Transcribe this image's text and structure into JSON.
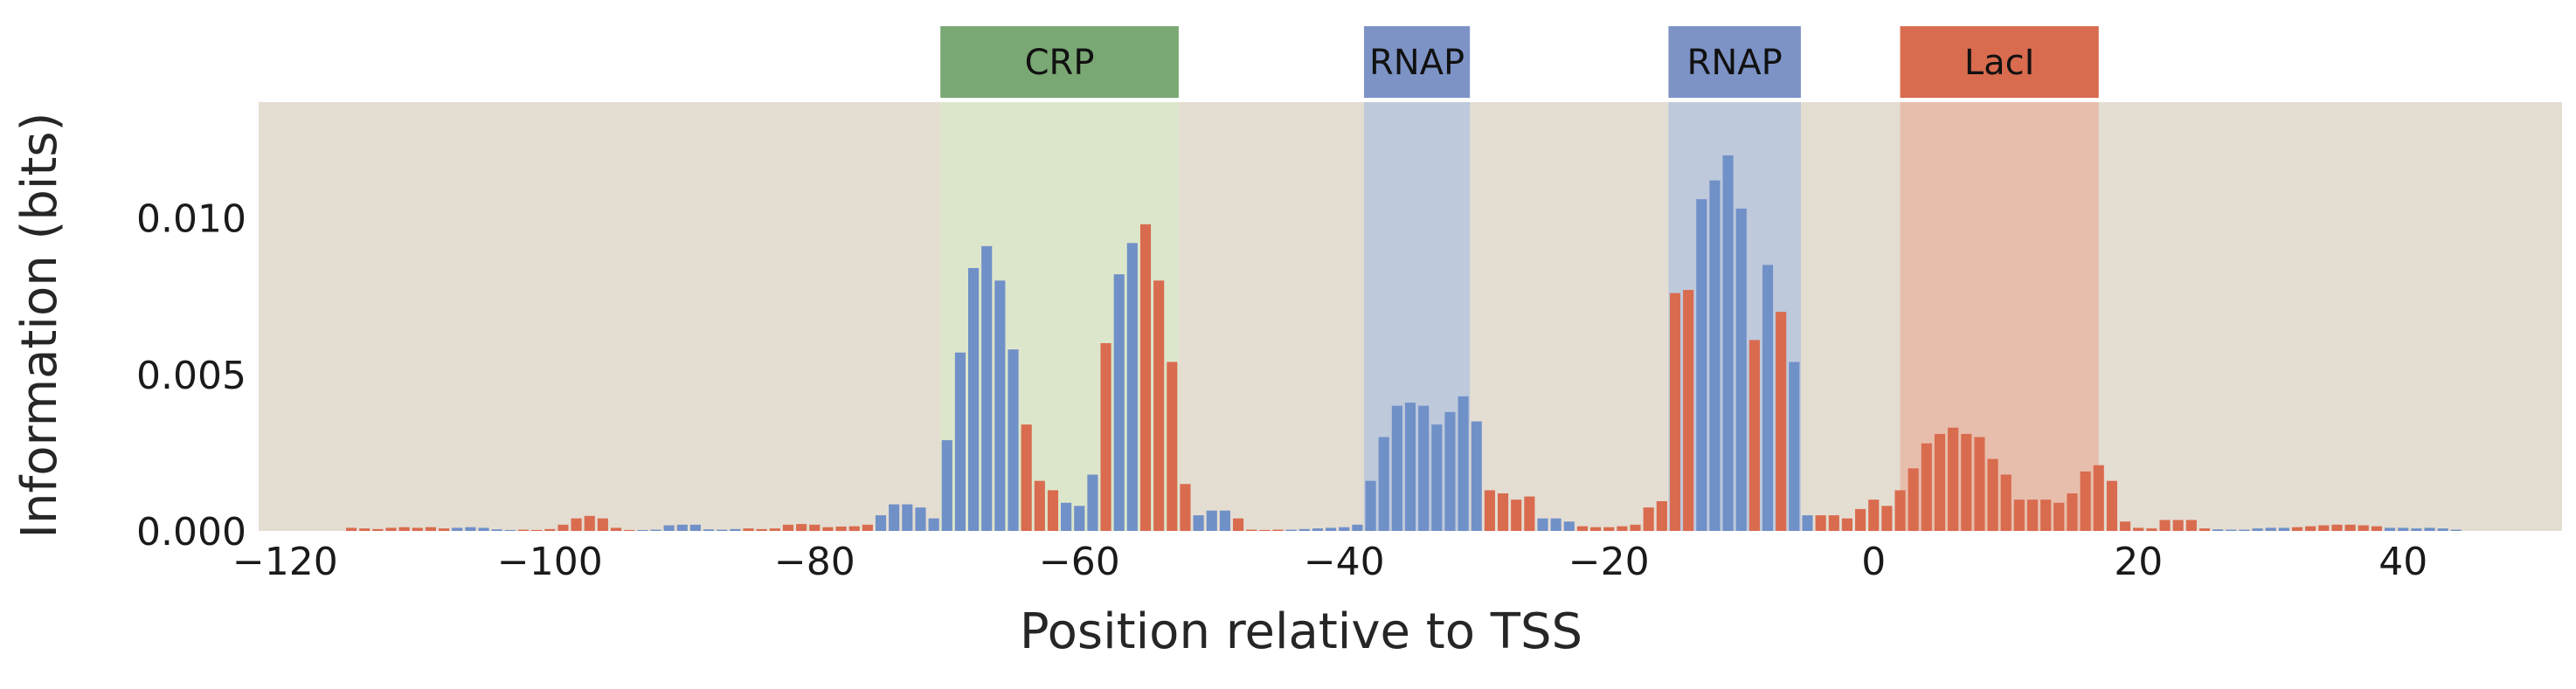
{
  "chart_data": {
    "type": "bar",
    "title": "",
    "xlabel": "Position relative to TSS",
    "ylabel": "Information (bits)",
    "xlim": [
      -122,
      52
    ],
    "ylim": [
      0,
      0.0137
    ],
    "x_ticks": [
      -120,
      -100,
      -80,
      -60,
      -40,
      -20,
      0,
      20,
      40
    ],
    "x_tick_labels": [
      "−120",
      "−100",
      "−80",
      "−60",
      "−40",
      "−20",
      "0",
      "20",
      "40"
    ],
    "y_ticks": [
      0.0,
      0.005,
      0.01
    ],
    "y_tick_labels": [
      "0.000",
      "0.005",
      "0.010"
    ],
    "grid": false,
    "colors": {
      "blue": "#7090c8",
      "red": "#d96b4f",
      "background": "#e4ddd1"
    },
    "regions": [
      {
        "label": "CRP",
        "start": -70.5,
        "end": -52.5,
        "color": "#7aa874",
        "fill": "#dbe8c9"
      },
      {
        "label": "RNAP",
        "start": -38.5,
        "end": -30.5,
        "color": "#7d93c6",
        "fill": "#b7c5de"
      },
      {
        "label": "RNAP",
        "start": -15.5,
        "end": -5.5,
        "color": "#7d93c6",
        "fill": "#b7c5de"
      },
      {
        "label": "LacI",
        "start": 2.0,
        "end": 17.0,
        "color": "#d96b4f",
        "fill": "#e8b9a5"
      }
    ],
    "bars": [
      {
        "x": -115,
        "y": 0.0001,
        "color": "red"
      },
      {
        "x": -114,
        "y": 8e-05,
        "color": "red"
      },
      {
        "x": -113,
        "y": 6e-05,
        "color": "red"
      },
      {
        "x": -112,
        "y": 0.0001,
        "color": "red"
      },
      {
        "x": -111,
        "y": 0.00012,
        "color": "red"
      },
      {
        "x": -110,
        "y": 0.0001,
        "color": "red"
      },
      {
        "x": -109,
        "y": 0.00012,
        "color": "red"
      },
      {
        "x": -108,
        "y": 8e-05,
        "color": "red"
      },
      {
        "x": -107,
        "y": 0.0001,
        "color": "blue"
      },
      {
        "x": -106,
        "y": 0.00012,
        "color": "blue"
      },
      {
        "x": -105,
        "y": 0.0001,
        "color": "blue"
      },
      {
        "x": -104,
        "y": 5e-05,
        "color": "blue"
      },
      {
        "x": -103,
        "y": 3e-05,
        "color": "blue"
      },
      {
        "x": -102,
        "y": 4e-05,
        "color": "red"
      },
      {
        "x": -101,
        "y": 3e-05,
        "color": "red"
      },
      {
        "x": -100,
        "y": 6e-05,
        "color": "red"
      },
      {
        "x": -99,
        "y": 0.0002,
        "color": "red"
      },
      {
        "x": -98,
        "y": 0.0004,
        "color": "red"
      },
      {
        "x": -97,
        "y": 0.00048,
        "color": "red"
      },
      {
        "x": -96,
        "y": 0.0004,
        "color": "red"
      },
      {
        "x": -95,
        "y": 0.0001,
        "color": "red"
      },
      {
        "x": -94,
        "y": 3e-05,
        "color": "red"
      },
      {
        "x": -93,
        "y": 3e-05,
        "color": "blue"
      },
      {
        "x": -92,
        "y": 4e-05,
        "color": "blue"
      },
      {
        "x": -91,
        "y": 0.00018,
        "color": "blue"
      },
      {
        "x": -90,
        "y": 0.0002,
        "color": "blue"
      },
      {
        "x": -89,
        "y": 0.0002,
        "color": "blue"
      },
      {
        "x": -88,
        "y": 5e-05,
        "color": "blue"
      },
      {
        "x": -87,
        "y": 4e-05,
        "color": "blue"
      },
      {
        "x": -86,
        "y": 6e-05,
        "color": "blue"
      },
      {
        "x": -85,
        "y": 8e-05,
        "color": "red"
      },
      {
        "x": -84,
        "y": 6e-05,
        "color": "red"
      },
      {
        "x": -83,
        "y": 8e-05,
        "color": "red"
      },
      {
        "x": -82,
        "y": 0.0002,
        "color": "red"
      },
      {
        "x": -81,
        "y": 0.00022,
        "color": "red"
      },
      {
        "x": -80,
        "y": 0.0002,
        "color": "red"
      },
      {
        "x": -79,
        "y": 0.00012,
        "color": "red"
      },
      {
        "x": -78,
        "y": 0.00014,
        "color": "red"
      },
      {
        "x": -77,
        "y": 0.00015,
        "color": "red"
      },
      {
        "x": -76,
        "y": 0.0002,
        "color": "red"
      },
      {
        "x": -75,
        "y": 0.0005,
        "color": "blue"
      },
      {
        "x": -74,
        "y": 0.00085,
        "color": "blue"
      },
      {
        "x": -73,
        "y": 0.00085,
        "color": "blue"
      },
      {
        "x": -72,
        "y": 0.00075,
        "color": "blue"
      },
      {
        "x": -71,
        "y": 0.0004,
        "color": "blue"
      },
      {
        "x": -70,
        "y": 0.0029,
        "color": "blue"
      },
      {
        "x": -69,
        "y": 0.0057,
        "color": "blue"
      },
      {
        "x": -68,
        "y": 0.0084,
        "color": "blue"
      },
      {
        "x": -67,
        "y": 0.0091,
        "color": "blue"
      },
      {
        "x": -66,
        "y": 0.008,
        "color": "blue"
      },
      {
        "x": -65,
        "y": 0.0058,
        "color": "blue"
      },
      {
        "x": -64,
        "y": 0.0034,
        "color": "red"
      },
      {
        "x": -63,
        "y": 0.0016,
        "color": "red"
      },
      {
        "x": -62,
        "y": 0.0013,
        "color": "red"
      },
      {
        "x": -61,
        "y": 0.0009,
        "color": "blue"
      },
      {
        "x": -60,
        "y": 0.0008,
        "color": "blue"
      },
      {
        "x": -59,
        "y": 0.0018,
        "color": "blue"
      },
      {
        "x": -58,
        "y": 0.006,
        "color": "red"
      },
      {
        "x": -57,
        "y": 0.0082,
        "color": "blue"
      },
      {
        "x": -56,
        "y": 0.0092,
        "color": "blue"
      },
      {
        "x": -55,
        "y": 0.0098,
        "color": "red"
      },
      {
        "x": -54,
        "y": 0.008,
        "color": "red"
      },
      {
        "x": -53,
        "y": 0.0054,
        "color": "red"
      },
      {
        "x": -52,
        "y": 0.0015,
        "color": "red"
      },
      {
        "x": -51,
        "y": 0.0005,
        "color": "blue"
      },
      {
        "x": -50,
        "y": 0.00065,
        "color": "blue"
      },
      {
        "x": -49,
        "y": 0.00065,
        "color": "blue"
      },
      {
        "x": -48,
        "y": 0.0004,
        "color": "red"
      },
      {
        "x": -47,
        "y": 4e-05,
        "color": "red"
      },
      {
        "x": -46,
        "y": 3e-05,
        "color": "red"
      },
      {
        "x": -45,
        "y": 4e-05,
        "color": "red"
      },
      {
        "x": -44,
        "y": 4e-05,
        "color": "blue"
      },
      {
        "x": -43,
        "y": 6e-05,
        "color": "blue"
      },
      {
        "x": -42,
        "y": 8e-05,
        "color": "blue"
      },
      {
        "x": -41,
        "y": 0.0001,
        "color": "blue"
      },
      {
        "x": -40,
        "y": 0.00012,
        "color": "blue"
      },
      {
        "x": -39,
        "y": 0.0002,
        "color": "blue"
      },
      {
        "x": -38,
        "y": 0.0016,
        "color": "blue"
      },
      {
        "x": -37,
        "y": 0.003,
        "color": "blue"
      },
      {
        "x": -36,
        "y": 0.004,
        "color": "blue"
      },
      {
        "x": -35,
        "y": 0.0041,
        "color": "blue"
      },
      {
        "x": -34,
        "y": 0.004,
        "color": "blue"
      },
      {
        "x": -33,
        "y": 0.0034,
        "color": "blue"
      },
      {
        "x": -32,
        "y": 0.0038,
        "color": "blue"
      },
      {
        "x": -31,
        "y": 0.0043,
        "color": "blue"
      },
      {
        "x": -30,
        "y": 0.0035,
        "color": "blue"
      },
      {
        "x": -29,
        "y": 0.0013,
        "color": "red"
      },
      {
        "x": -28,
        "y": 0.0012,
        "color": "red"
      },
      {
        "x": -27,
        "y": 0.001,
        "color": "red"
      },
      {
        "x": -26,
        "y": 0.0011,
        "color": "red"
      },
      {
        "x": -25,
        "y": 0.0004,
        "color": "blue"
      },
      {
        "x": -24,
        "y": 0.0004,
        "color": "blue"
      },
      {
        "x": -23,
        "y": 0.0003,
        "color": "blue"
      },
      {
        "x": -22,
        "y": 0.00015,
        "color": "red"
      },
      {
        "x": -21,
        "y": 0.00012,
        "color": "red"
      },
      {
        "x": -20,
        "y": 0.00012,
        "color": "red"
      },
      {
        "x": -19,
        "y": 0.00015,
        "color": "red"
      },
      {
        "x": -18,
        "y": 0.0002,
        "color": "red"
      },
      {
        "x": -17,
        "y": 0.00075,
        "color": "red"
      },
      {
        "x": -16,
        "y": 0.00095,
        "color": "red"
      },
      {
        "x": -15,
        "y": 0.0076,
        "color": "red"
      },
      {
        "x": -14,
        "y": 0.0077,
        "color": "red"
      },
      {
        "x": -13,
        "y": 0.0106,
        "color": "blue"
      },
      {
        "x": -12,
        "y": 0.0112,
        "color": "blue"
      },
      {
        "x": -11,
        "y": 0.012,
        "color": "blue"
      },
      {
        "x": -10,
        "y": 0.0103,
        "color": "blue"
      },
      {
        "x": -9,
        "y": 0.0061,
        "color": "red"
      },
      {
        "x": -8,
        "y": 0.0085,
        "color": "blue"
      },
      {
        "x": -7,
        "y": 0.007,
        "color": "red"
      },
      {
        "x": -6,
        "y": 0.0054,
        "color": "blue"
      },
      {
        "x": -5,
        "y": 0.0005,
        "color": "blue"
      },
      {
        "x": -4,
        "y": 0.0005,
        "color": "red"
      },
      {
        "x": -3,
        "y": 0.0005,
        "color": "red"
      },
      {
        "x": -2,
        "y": 0.0004,
        "color": "red"
      },
      {
        "x": -1,
        "y": 0.0007,
        "color": "red"
      },
      {
        "x": 0,
        "y": 0.001,
        "color": "red"
      },
      {
        "x": 1,
        "y": 0.0008,
        "color": "red"
      },
      {
        "x": 2,
        "y": 0.0013,
        "color": "red"
      },
      {
        "x": 3,
        "y": 0.002,
        "color": "red"
      },
      {
        "x": 4,
        "y": 0.0028,
        "color": "red"
      },
      {
        "x": 5,
        "y": 0.0031,
        "color": "red"
      },
      {
        "x": 6,
        "y": 0.0033,
        "color": "red"
      },
      {
        "x": 7,
        "y": 0.0031,
        "color": "red"
      },
      {
        "x": 8,
        "y": 0.003,
        "color": "red"
      },
      {
        "x": 9,
        "y": 0.0023,
        "color": "red"
      },
      {
        "x": 10,
        "y": 0.0018,
        "color": "red"
      },
      {
        "x": 11,
        "y": 0.001,
        "color": "red"
      },
      {
        "x": 12,
        "y": 0.001,
        "color": "red"
      },
      {
        "x": 13,
        "y": 0.001,
        "color": "red"
      },
      {
        "x": 14,
        "y": 0.0009,
        "color": "red"
      },
      {
        "x": 15,
        "y": 0.0012,
        "color": "red"
      },
      {
        "x": 16,
        "y": 0.0019,
        "color": "red"
      },
      {
        "x": 17,
        "y": 0.0021,
        "color": "red"
      },
      {
        "x": 18,
        "y": 0.0016,
        "color": "red"
      },
      {
        "x": 19,
        "y": 0.0003,
        "color": "red"
      },
      {
        "x": 20,
        "y": 0.0001,
        "color": "red"
      },
      {
        "x": 21,
        "y": 8e-05,
        "color": "red"
      },
      {
        "x": 22,
        "y": 0.00035,
        "color": "red"
      },
      {
        "x": 23,
        "y": 0.00035,
        "color": "red"
      },
      {
        "x": 24,
        "y": 0.00035,
        "color": "red"
      },
      {
        "x": 25,
        "y": 8e-05,
        "color": "red"
      },
      {
        "x": 26,
        "y": 5e-05,
        "color": "blue"
      },
      {
        "x": 27,
        "y": 4e-05,
        "color": "blue"
      },
      {
        "x": 28,
        "y": 4e-05,
        "color": "blue"
      },
      {
        "x": 29,
        "y": 8e-05,
        "color": "blue"
      },
      {
        "x": 30,
        "y": 0.0001,
        "color": "blue"
      },
      {
        "x": 31,
        "y": 0.0001,
        "color": "blue"
      },
      {
        "x": 32,
        "y": 0.00012,
        "color": "red"
      },
      {
        "x": 33,
        "y": 0.00015,
        "color": "red"
      },
      {
        "x": 34,
        "y": 0.00018,
        "color": "red"
      },
      {
        "x": 35,
        "y": 0.0002,
        "color": "red"
      },
      {
        "x": 36,
        "y": 0.0002,
        "color": "red"
      },
      {
        "x": 37,
        "y": 0.00018,
        "color": "red"
      },
      {
        "x": 38,
        "y": 0.00015,
        "color": "red"
      },
      {
        "x": 39,
        "y": 0.0001,
        "color": "blue"
      },
      {
        "x": 40,
        "y": 0.0001,
        "color": "blue"
      },
      {
        "x": 41,
        "y": 8e-05,
        "color": "blue"
      },
      {
        "x": 42,
        "y": 0.0001,
        "color": "blue"
      },
      {
        "x": 43,
        "y": 8e-05,
        "color": "blue"
      },
      {
        "x": 44,
        "y": 4e-05,
        "color": "blue"
      }
    ]
  }
}
